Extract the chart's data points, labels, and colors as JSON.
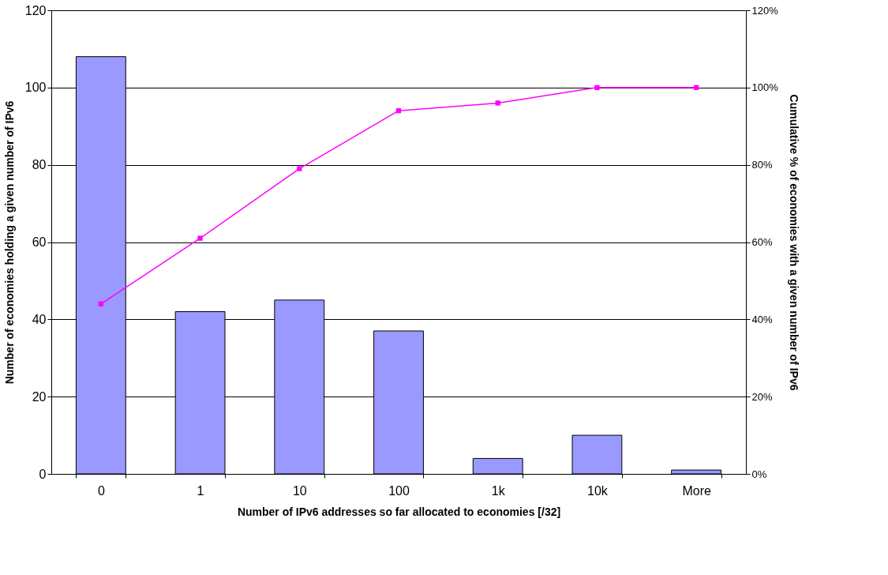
{
  "chart_data": {
    "type": "bar",
    "xlabel": "Number of IPv6 addresses so far allocated to economies [/32]",
    "ylabel": "Number of economies holding a given number of IPv6",
    "y2label": "Cumulative % of economies with a given number of IPv6",
    "categories": [
      "0",
      "1",
      "10",
      "100",
      "1k",
      "10k",
      "More"
    ],
    "series": [
      {
        "color": "#9999ff",
        "values": [
          108,
          42,
          45,
          37,
          4,
          10,
          1
        ]
      },
      {
        "type": "line",
        "axis": "y2",
        "color": "#ff00ff",
        "marker": "square",
        "values": [
          44,
          61,
          79,
          94,
          96,
          100,
          100
        ]
      }
    ],
    "ylim": [
      0,
      120
    ],
    "yticks": [
      0,
      20,
      40,
      60,
      80,
      100,
      120
    ],
    "y2lim": [
      0,
      120
    ],
    "y2ticks": [
      {
        "value": 0,
        "label": "0%"
      },
      {
        "value": 20,
        "label": "20%"
      },
      {
        "value": 40,
        "label": "40%"
      },
      {
        "value": 60,
        "label": "60%"
      },
      {
        "value": 80,
        "label": "80%"
      },
      {
        "value": 100,
        "label": "100%"
      },
      {
        "value": 120,
        "label": "120%"
      }
    ],
    "grid": "y"
  }
}
